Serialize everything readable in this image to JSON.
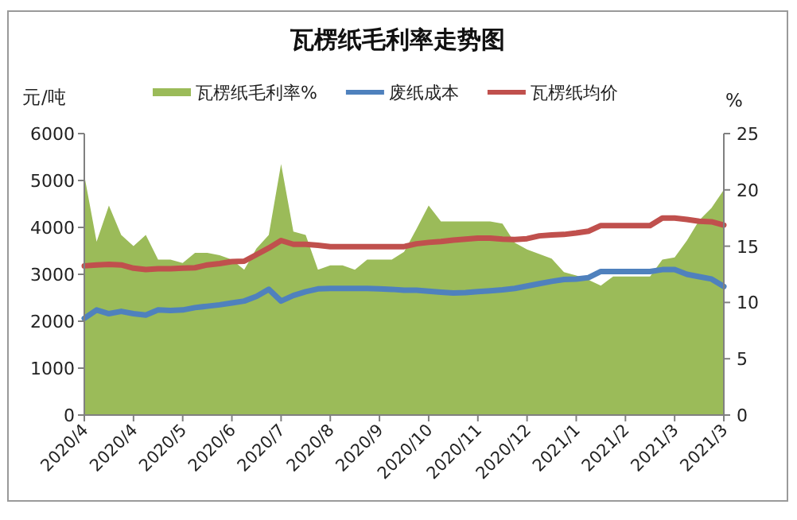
{
  "chart_data": {
    "type": "line",
    "title": "瓦楞纸毛利率走势图",
    "ylabel": "元/吨",
    "y2label": "%",
    "categories": [
      "2020/4",
      null,
      null,
      null,
      "2020/4",
      null,
      null,
      null,
      "2020/5",
      null,
      null,
      null,
      "2020/6",
      null,
      null,
      null,
      "2020/7",
      null,
      null,
      null,
      "2020/8",
      null,
      null,
      null,
      "2020/9",
      null,
      null,
      null,
      "2020/10",
      null,
      null,
      null,
      "2020/11",
      null,
      null,
      null,
      "2020/12",
      null,
      null,
      null,
      "2021/1",
      null,
      null,
      null,
      "2021/2",
      null,
      null,
      null,
      "2021/3",
      null,
      null,
      null,
      "2021/3"
    ],
    "series": [
      {
        "name": "瓦楞纸毛利率%",
        "type": "area",
        "axis": "y2",
        "color": "#9bbb59",
        "values": [
          21.3,
          15.4,
          18.6,
          16,
          15,
          16,
          13.8,
          13.8,
          13.5,
          14.4,
          14.4,
          14.2,
          13.8,
          12.9,
          14.8,
          16,
          22.3,
          16.3,
          16,
          12.9,
          13.3,
          13.3,
          12.9,
          13.8,
          13.8,
          13.8,
          14.5,
          16.5,
          18.6,
          17.2,
          17.2,
          17.2,
          17.2,
          17.2,
          17,
          15.3,
          14.7,
          14.3,
          13.9,
          12.7,
          12.4,
          12,
          11.5,
          12.3,
          12.3,
          12.3,
          12.3,
          13.8,
          14,
          15.5,
          17.3,
          18.4,
          20
        ]
      },
      {
        "name": "废纸成本",
        "color": "#4f81bd",
        "values": [
          2060,
          2240,
          2160,
          2210,
          2160,
          2130,
          2240,
          2230,
          2240,
          2290,
          2320,
          2350,
          2390,
          2430,
          2530,
          2680,
          2430,
          2550,
          2630,
          2690,
          2700,
          2700,
          2700,
          2700,
          2690,
          2680,
          2660,
          2660,
          2640,
          2620,
          2600,
          2610,
          2630,
          2650,
          2670,
          2700,
          2750,
          2800,
          2850,
          2890,
          2900,
          2930,
          3060,
          3060,
          3060,
          3060,
          3060,
          3100,
          3100,
          3000,
          2950,
          2900,
          2740
        ]
      },
      {
        "name": "瓦楞纸均价",
        "color": "#c0504d",
        "values": [
          3180,
          3200,
          3210,
          3200,
          3130,
          3100,
          3120,
          3120,
          3130,
          3140,
          3200,
          3230,
          3270,
          3280,
          3420,
          3560,
          3720,
          3640,
          3640,
          3620,
          3590,
          3590,
          3590,
          3590,
          3590,
          3590,
          3590,
          3650,
          3680,
          3700,
          3730,
          3750,
          3770,
          3770,
          3750,
          3740,
          3760,
          3820,
          3840,
          3850,
          3880,
          3920,
          4040,
          4040,
          4040,
          4040,
          4040,
          4200,
          4200,
          4170,
          4130,
          4120,
          4050
        ]
      }
    ],
    "ylim": [
      0,
      6000
    ],
    "yticks": [
      0,
      1000,
      2000,
      3000,
      4000,
      5000,
      6000
    ],
    "y2lim": [
      0,
      25
    ],
    "y2ticks": [
      0,
      5,
      10,
      15,
      20,
      25
    ],
    "grid": false,
    "legend": "top",
    "line_style": "solid",
    "marker": "none"
  }
}
